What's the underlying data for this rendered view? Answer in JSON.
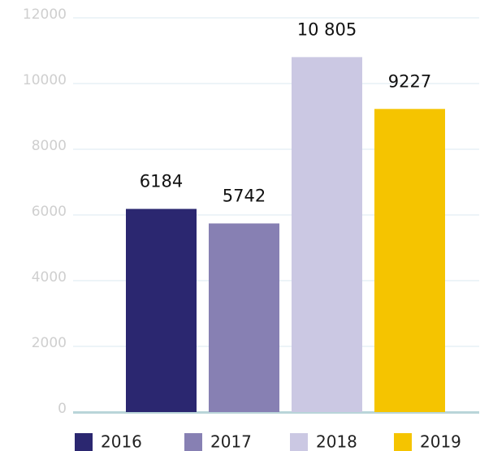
{
  "chart_data": {
    "type": "bar",
    "categories": [
      "2016",
      "2017",
      "2018",
      "2019"
    ],
    "values": [
      6184,
      5742,
      10805,
      9227
    ],
    "value_labels": [
      "6184",
      "5742",
      "10 805",
      "9227"
    ],
    "colors": [
      "#2b2770",
      "#8780b3",
      "#cbc8e3",
      "#f5c400"
    ],
    "ylim": [
      0,
      12000
    ],
    "yticks": [
      0,
      2000,
      4000,
      6000,
      8000,
      10000,
      12000
    ],
    "grid": true,
    "legend": "bottom"
  }
}
